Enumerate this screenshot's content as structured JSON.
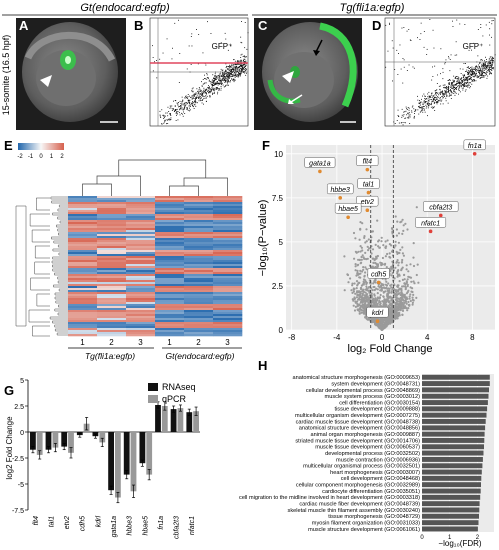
{
  "headers": {
    "left": "Gt(endocard:egfp)",
    "right": "Tg(fli1a:egfp)"
  },
  "side_label": "15-somite (16.5 hpf)",
  "panels": {
    "A": {
      "letter": "A"
    },
    "B": {
      "letter": "B",
      "gate_label": "GFP⁺"
    },
    "C": {
      "letter": "C"
    },
    "D": {
      "letter": "D",
      "gate_label": "GFP⁺"
    },
    "E": {
      "letter": "E",
      "legend_ticks": [
        "-2",
        "-1",
        "0",
        "1",
        "2"
      ],
      "colors": {
        "low": "#2166ac",
        "mid": "#f7f7f7",
        "high": "#d6604d"
      },
      "columns": [
        "1",
        "2",
        "3",
        "1",
        "2",
        "3"
      ],
      "group_labels": [
        "Tg(fli1a:egfp)",
        "Gt(endocard:egfp)"
      ]
    },
    "F": {
      "letter": "F",
      "chart_data": {
        "type": "scatter",
        "title": "",
        "xlabel": "log₂ Fold Change",
        "ylabel": "−log₁₀(P−value)",
        "xlim": [
          -8.5,
          10
        ],
        "ylim": [
          0,
          10.5
        ],
        "x_ticks": [
          -8,
          -4,
          0,
          4,
          8
        ],
        "y_ticks": [
          0,
          2.5,
          5,
          7.5,
          10
        ],
        "thresholds_x": [
          -1,
          1
        ],
        "labeled_genes": [
          {
            "gene": "fn1a",
            "x": 8.2,
            "y": 10.0
          },
          {
            "gene": "gata1a",
            "x": -5.5,
            "y": 9.0
          },
          {
            "gene": "flt4",
            "x": -1.3,
            "y": 9.1
          },
          {
            "gene": "tal1",
            "x": -1.2,
            "y": 7.8
          },
          {
            "gene": "hbbe3",
            "x": -3.7,
            "y": 7.5
          },
          {
            "gene": "etv2",
            "x": -1.3,
            "y": 6.8
          },
          {
            "gene": "hbae5",
            "x": -3.0,
            "y": 6.4
          },
          {
            "gene": "cbfa2t3",
            "x": 5.2,
            "y": 6.5
          },
          {
            "gene": "nfatc1",
            "x": 4.3,
            "y": 5.6
          },
          {
            "gene": "cdh5",
            "x": -0.3,
            "y": 2.7
          },
          {
            "gene": "kdrl",
            "x": -0.4,
            "y": 0.5
          }
        ]
      }
    },
    "G": {
      "letter": "G",
      "chart_data": {
        "type": "bar",
        "title": "",
        "xlabel": "",
        "ylabel": "log2 Fold Change",
        "ylim": [
          -7.5,
          5
        ],
        "y_ticks": [
          -7.5,
          -5,
          -2.5,
          0,
          2.5,
          5
        ],
        "categories": [
          "flt4",
          "tal1",
          "etv2",
          "cdh5",
          "kdrl",
          "gata1a",
          "hbbe3",
          "hbae5",
          "fn1a",
          "cbfa2t3",
          "nfatc1"
        ],
        "series": [
          {
            "name": "RNAseq",
            "color": "#111111",
            "values": [
              -1.7,
              -1.7,
              -1.4,
              -0.3,
              -0.4,
              -5.6,
              -4.1,
              -3.0,
              2.6,
              2.2,
              1.9
            ]
          },
          {
            "name": "qPCR",
            "color": "#999999",
            "values": [
              -2.2,
              -1.5,
              -2.0,
              0.8,
              -1.0,
              -6.3,
              -5.7,
              -4.1,
              2.5,
              2.3,
              2.0
            ]
          }
        ],
        "errors": [
          [
            0.3,
            0.3,
            0.3,
            0.2,
            0.2,
            0.4,
            0.4,
            0.3,
            0.3,
            0.3,
            0.3
          ],
          [
            0.4,
            0.4,
            0.5,
            0.6,
            0.4,
            0.5,
            0.6,
            0.5,
            0.4,
            0.3,
            0.4
          ]
        ]
      }
    },
    "H": {
      "letter": "H",
      "chart_data": {
        "type": "bar",
        "orientation": "horizontal",
        "title": "",
        "xlabel": "−log₁₀(FDR)",
        "xlim": [
          0,
          2.6
        ],
        "x_ticks": [
          0,
          1,
          2
        ],
        "categories": [
          "anatomical structure morphogenesis (GO:0009653)",
          "system development (GO:0048731)",
          "cellular developmental process (GO:0048869)",
          "muscle system process (GO:0003012)",
          "cell differentiation (GO:0030154)",
          "tissue development (GO:0009888)",
          "multicellular organism development (GO:0007275)",
          "cardiac muscle tissue development (GO:0048738)",
          "anatomical structure development (GO:0048856)",
          "animal organ morphogenesis (GO:0009887)",
          "striated muscle tissue development (GO:0014706)",
          "muscle tissue development (GO:0060537)",
          "developmental process (GO:0032502)",
          "muscle contraction (GO:0006936)",
          "multicellular organismal process (GO:0032501)",
          "heart morphogenesis (GO:0003007)",
          "cell development (GO:0048468)",
          "cellular component morphogenesis (GO:0032989)",
          "cardiocyte differentiation (GO:0035051)",
          "cell migration to the midline involved in heart development (GO:0003318)",
          "cardiac muscle fiber development (GO:0048739)",
          "skeletal muscle thin filament assembly (GO:0030240)",
          "tissue morphogenesis (GO:0048729)",
          "myosin filament organization (GO:0031033)",
          "muscle structure development (GO:0061061)"
        ],
        "values": [
          2.45,
          2.45,
          2.42,
          2.4,
          2.38,
          2.35,
          2.33,
          2.3,
          2.28,
          2.26,
          2.25,
          2.24,
          2.22,
          2.2,
          2.18,
          2.16,
          2.14,
          2.13,
          2.12,
          2.1,
          2.08,
          2.07,
          2.06,
          2.04,
          2.02
        ],
        "bar_color": "#555555"
      }
    }
  }
}
